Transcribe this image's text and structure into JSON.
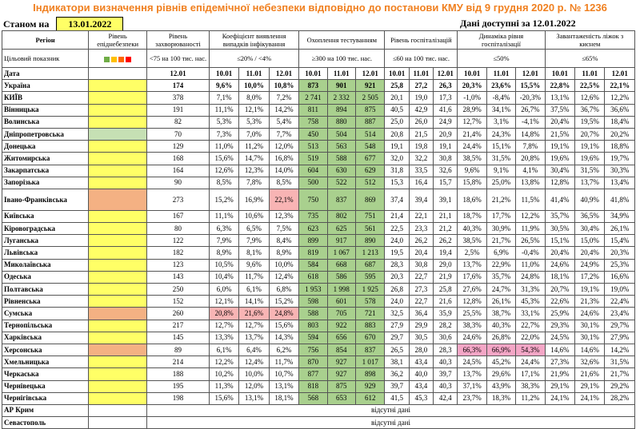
{
  "title": "Індикатори визначення рівнів епідемічної небезпеки відповідно до постанови КМУ від 9 грудня 2020 р. № 1236",
  "status_label": "Станом на",
  "status_date": "13.01.2022",
  "available_label": "Дані доступні за 12.01.2022",
  "headers": {
    "region": "Регіон",
    "level": "Рівень епіднебезпеки",
    "morbidity": "Рівень захворюваності",
    "detection": "Коефіцієнт виявлення випадків інфікування",
    "testing": "Охоплення тестуванням",
    "hosp": "Рівень госпіталізацій",
    "hosp_dyn": "Динаміка рівня госпіталізації",
    "beds": "Завантаженість ліжок з киснем"
  },
  "target_label": "Цільовий показник",
  "targets": {
    "morbidity": "<75 на 100 тис. нас.",
    "detection": "≤20% / <4%",
    "testing": "≥300 на 100 тис. нас.",
    "hosp": "≤60 на 100 тис. нас.",
    "hosp_dyn": "≤50%",
    "beds": "≤65%"
  },
  "level_colors": [
    "#70ad47",
    "#ffc000",
    "#ff6600",
    "#ff0000"
  ],
  "date_label": "Дата",
  "dates": {
    "morbidity": "12.01",
    "d1": "10.01",
    "d2": "11.01",
    "d3": "12.01"
  },
  "rows": [
    {
      "name": "Україна",
      "m": "174",
      "c": [
        "9,6%",
        "10,0%",
        "10,8%"
      ],
      "t": [
        "873",
        "901",
        "921"
      ],
      "h": [
        "25,8",
        "27,2",
        "26,3"
      ],
      "g": [
        "20,3%",
        "23,6%",
        "15,5%"
      ],
      "b": [
        "22,8%",
        "22,5%",
        "22,1%"
      ]
    },
    {
      "name": "КИЇВ",
      "m": "378",
      "c": [
        "7,1%",
        "8,0%",
        "7,2%"
      ],
      "t": [
        "2 741",
        "2 332",
        "2 505"
      ],
      "h": [
        "20,1",
        "19,0",
        "17,3"
      ],
      "g": [
        "-1,0%",
        "-8,4%",
        "-20,3%"
      ],
      "b": [
        "13,1%",
        "12,6%",
        "12,2%"
      ]
    },
    {
      "name": "Вінницька",
      "m": "191",
      "c": [
        "11,1%",
        "12,1%",
        "14,2%"
      ],
      "t": [
        "811",
        "894",
        "875"
      ],
      "h": [
        "40,5",
        "42,9",
        "41,6"
      ],
      "g": [
        "28,9%",
        "34,1%",
        "26,7%"
      ],
      "b": [
        "37,5%",
        "36,7%",
        "36,6%"
      ]
    },
    {
      "name": "Волинська",
      "m": "82",
      "c": [
        "5,3%",
        "5,3%",
        "5,4%"
      ],
      "t": [
        "758",
        "880",
        "887"
      ],
      "h": [
        "25,0",
        "26,0",
        "24,9"
      ],
      "g": [
        "12,7%",
        "3,1%",
        "-4,1%"
      ],
      "b": [
        "20,4%",
        "19,5%",
        "18,4%"
      ]
    },
    {
      "name": "Дніпропетровська",
      "m": "70",
      "c": [
        "7,3%",
        "7,0%",
        "7,7%"
      ],
      "t": [
        "450",
        "504",
        "514"
      ],
      "h": [
        "20,8",
        "21,5",
        "20,9"
      ],
      "g": [
        "21,4%",
        "24,3%",
        "14,8%"
      ],
      "b": [
        "21,5%",
        "20,7%",
        "20,2%"
      ]
    },
    {
      "name": "Донецька",
      "m": "129",
      "c": [
        "11,0%",
        "11,2%",
        "12,0%"
      ],
      "t": [
        "513",
        "563",
        "548"
      ],
      "h": [
        "19,1",
        "19,8",
        "19,1"
      ],
      "g": [
        "24,4%",
        "15,1%",
        "7,8%"
      ],
      "b": [
        "19,1%",
        "19,1%",
        "18,8%"
      ]
    },
    {
      "name": "Житомирська",
      "m": "168",
      "c": [
        "15,6%",
        "14,7%",
        "16,8%"
      ],
      "t": [
        "519",
        "588",
        "677"
      ],
      "h": [
        "32,0",
        "32,2",
        "30,8"
      ],
      "g": [
        "38,5%",
        "31,5%",
        "20,8%"
      ],
      "b": [
        "19,6%",
        "19,6%",
        "19,7%"
      ]
    },
    {
      "name": "Закарпатська",
      "m": "164",
      "c": [
        "12,6%",
        "12,3%",
        "14,0%"
      ],
      "t": [
        "604",
        "630",
        "629"
      ],
      "h": [
        "31,8",
        "33,5",
        "32,6"
      ],
      "g": [
        "9,6%",
        "9,1%",
        "4,1%"
      ],
      "b": [
        "30,4%",
        "31,5%",
        "30,3%"
      ]
    },
    {
      "name": "Запорізька",
      "m": "90",
      "c": [
        "8,5%",
        "7,8%",
        "8,5%"
      ],
      "t": [
        "500",
        "522",
        "512"
      ],
      "h": [
        "15,3",
        "16,4",
        "15,7"
      ],
      "g": [
        "15,8%",
        "25,0%",
        "13,8%"
      ],
      "b": [
        "12,8%",
        "13,7%",
        "13,4%"
      ]
    },
    {
      "name": "Івано-Франківська",
      "m": "273",
      "c": [
        "15,2%",
        "16,9%",
        "22,1%"
      ],
      "t": [
        "750",
        "837",
        "869"
      ],
      "h": [
        "37,4",
        "39,4",
        "39,1"
      ],
      "g": [
        "18,6%",
        "21,2%",
        "11,5%"
      ],
      "b": [
        "41,4%",
        "40,9%",
        "41,8%"
      ]
    },
    {
      "name": "Київська",
      "m": "167",
      "c": [
        "11,1%",
        "10,6%",
        "12,3%"
      ],
      "t": [
        "735",
        "802",
        "751"
      ],
      "h": [
        "21,4",
        "22,1",
        "21,1"
      ],
      "g": [
        "18,7%",
        "17,7%",
        "12,2%"
      ],
      "b": [
        "35,7%",
        "36,5%",
        "34,9%"
      ]
    },
    {
      "name": "Кіровоградська",
      "m": "80",
      "c": [
        "6,3%",
        "6,5%",
        "7,5%"
      ],
      "t": [
        "623",
        "625",
        "561"
      ],
      "h": [
        "22,5",
        "23,3",
        "21,2"
      ],
      "g": [
        "40,3%",
        "30,9%",
        "11,9%"
      ],
      "b": [
        "30,5%",
        "30,4%",
        "26,1%"
      ]
    },
    {
      "name": "Луганська",
      "m": "122",
      "c": [
        "7,9%",
        "7,9%",
        "8,4%"
      ],
      "t": [
        "899",
        "917",
        "890"
      ],
      "h": [
        "24,0",
        "26,2",
        "26,2"
      ],
      "g": [
        "38,5%",
        "21,7%",
        "26,5%"
      ],
      "b": [
        "15,1%",
        "15,0%",
        "15,4%"
      ]
    },
    {
      "name": "Львівська",
      "m": "182",
      "c": [
        "8,9%",
        "8,1%",
        "8,9%"
      ],
      "t": [
        "819",
        "1 067",
        "1 213"
      ],
      "h": [
        "19,5",
        "20,4",
        "19,4"
      ],
      "g": [
        "2,5%",
        "6,9%",
        "-0,4%"
      ],
      "b": [
        "20,4%",
        "20,4%",
        "20,3%"
      ]
    },
    {
      "name": "Миколаївська",
      "m": "123",
      "c": [
        "10,5%",
        "9,6%",
        "10,0%"
      ],
      "t": [
        "584",
        "668",
        "687"
      ],
      "h": [
        "28,3",
        "30,8",
        "29,0"
      ],
      "g": [
        "13,7%",
        "22,9%",
        "11,0%"
      ],
      "b": [
        "24,6%",
        "24,9%",
        "25,3%"
      ]
    },
    {
      "name": "Одеська",
      "m": "143",
      "c": [
        "10,4%",
        "11,7%",
        "12,4%"
      ],
      "t": [
        "618",
        "586",
        "595"
      ],
      "h": [
        "20,3",
        "22,7",
        "21,9"
      ],
      "g": [
        "17,6%",
        "35,7%",
        "24,8%"
      ],
      "b": [
        "18,1%",
        "17,2%",
        "16,6%"
      ]
    },
    {
      "name": "Полтавська",
      "m": "250",
      "c": [
        "6,0%",
        "6,1%",
        "6,8%"
      ],
      "t": [
        "1 953",
        "1 998",
        "1 925"
      ],
      "h": [
        "26,8",
        "27,3",
        "25,8"
      ],
      "g": [
        "27,6%",
        "24,7%",
        "31,3%"
      ],
      "b": [
        "20,7%",
        "19,1%",
        "19,0%"
      ]
    },
    {
      "name": "Рівненська",
      "m": "152",
      "c": [
        "12,1%",
        "14,1%",
        "15,2%"
      ],
      "t": [
        "598",
        "601",
        "578"
      ],
      "h": [
        "24,0",
        "22,7",
        "21,6"
      ],
      "g": [
        "12,8%",
        "26,1%",
        "45,3%"
      ],
      "b": [
        "22,6%",
        "21,3%",
        "22,4%"
      ]
    },
    {
      "name": "Сумська",
      "m": "260",
      "c": [
        "20,8%",
        "21,6%",
        "24,8%"
      ],
      "t": [
        "588",
        "705",
        "721"
      ],
      "h": [
        "32,5",
        "36,4",
        "35,9"
      ],
      "g": [
        "25,5%",
        "38,7%",
        "33,1%"
      ],
      "b": [
        "25,9%",
        "24,6%",
        "23,4%"
      ]
    },
    {
      "name": "Тернопільська",
      "m": "217",
      "c": [
        "12,7%",
        "12,7%",
        "15,6%"
      ],
      "t": [
        "803",
        "922",
        "883"
      ],
      "h": [
        "27,9",
        "29,9",
        "28,2"
      ],
      "g": [
        "38,3%",
        "40,3%",
        "22,7%"
      ],
      "b": [
        "29,3%",
        "30,1%",
        "29,7%"
      ]
    },
    {
      "name": "Харківська",
      "m": "145",
      "c": [
        "13,3%",
        "13,7%",
        "14,3%"
      ],
      "t": [
        "594",
        "656",
        "670"
      ],
      "h": [
        "29,7",
        "30,5",
        "30,6"
      ],
      "g": [
        "24,6%",
        "26,8%",
        "22,0%"
      ],
      "b": [
        "24,5%",
        "30,1%",
        "27,9%"
      ]
    },
    {
      "name": "Херсонська",
      "m": "89",
      "c": [
        "6,1%",
        "6,4%",
        "6,2%"
      ],
      "t": [
        "756",
        "854",
        "837"
      ],
      "h": [
        "26,5",
        "28,0",
        "28,3"
      ],
      "g": [
        "66,3%",
        "66,9%",
        "54,3%"
      ],
      "b": [
        "14,6%",
        "14,6%",
        "14,2%"
      ]
    },
    {
      "name": "Хмельницька",
      "m": "214",
      "c": [
        "12,2%",
        "12,4%",
        "11,7%"
      ],
      "t": [
        "870",
        "927",
        "1 017"
      ],
      "h": [
        "38,1",
        "43,4",
        "40,3"
      ],
      "g": [
        "24,5%",
        "45,2%",
        "24,4%"
      ],
      "b": [
        "27,3%",
        "32,6%",
        "31,5%"
      ]
    },
    {
      "name": "Черкаська",
      "m": "188",
      "c": [
        "10,2%",
        "10,0%",
        "10,7%"
      ],
      "t": [
        "877",
        "927",
        "898"
      ],
      "h": [
        "36,2",
        "40,0",
        "39,7"
      ],
      "g": [
        "13,7%",
        "29,6%",
        "17,1%"
      ],
      "b": [
        "21,9%",
        "21,6%",
        "21,7%"
      ]
    },
    {
      "name": "Чернівецька",
      "m": "195",
      "c": [
        "11,3%",
        "12,0%",
        "13,1%"
      ],
      "t": [
        "818",
        "875",
        "929"
      ],
      "h": [
        "39,7",
        "43,4",
        "40,3"
      ],
      "g": [
        "37,1%",
        "43,9%",
        "38,3%"
      ],
      "b": [
        "29,1%",
        "29,1%",
        "29,2%"
      ]
    },
    {
      "name": "Чернігівська",
      "m": "198",
      "c": [
        "15,6%",
        "13,1%",
        "18,1%"
      ],
      "t": [
        "568",
        "653",
        "612"
      ],
      "h": [
        "41,5",
        "45,3",
        "42,4"
      ],
      "g": [
        "23,7%",
        "18,3%",
        "11,2%"
      ],
      "b": [
        "24,1%",
        "24,1%",
        "28,2%"
      ]
    }
  ],
  "no_data_rows": [
    {
      "name": "АР Крим",
      "text": "відсутні дані"
    },
    {
      "name": "Севастополь",
      "text": "відсутні дані"
    }
  ]
}
